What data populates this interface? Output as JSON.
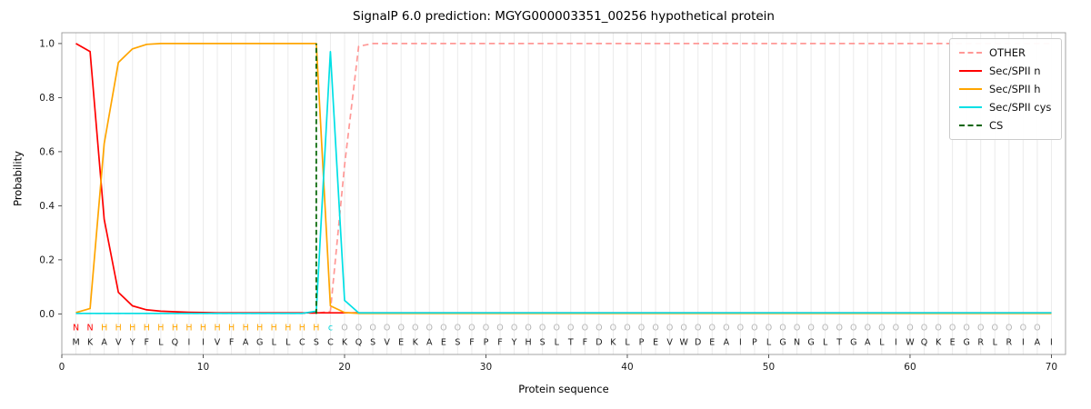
{
  "chart_data": {
    "type": "line",
    "title": "SignalP 6.0 prediction: MGYG000003351_00256 hypothetical protein",
    "xlabel": "Protein sequence",
    "ylabel": "Probability",
    "xlim": [
      0,
      71
    ],
    "ylim": [
      -0.15,
      1.04
    ],
    "xticks": [
      0,
      10,
      20,
      30,
      40,
      50,
      60,
      70
    ],
    "yticks": [
      "0.0",
      "0.2",
      "0.4",
      "0.6",
      "0.8",
      "1.0"
    ],
    "grid": "vertical-gridline-per-residue",
    "legend_position": "upper right",
    "x_positions_start": 1,
    "x_positions_end": 70,
    "series": [
      {
        "name": "OTHER",
        "color": "#ff9896",
        "style": "dashed",
        "values": [
          0.002,
          0.002,
          0.002,
          0.002,
          0.002,
          0.002,
          0.002,
          0.002,
          0.002,
          0.002,
          0.002,
          0.002,
          0.002,
          0.002,
          0.002,
          0.002,
          0.002,
          0.002,
          0.01,
          0.55,
          0.99,
          1.0,
          1.0,
          1.0,
          1.0,
          1.0,
          1.0,
          1.0,
          1.0,
          1.0,
          1.0,
          1.0,
          1.0,
          1.0,
          1.0,
          1.0,
          1.0,
          1.0,
          1.0,
          1.0,
          1.0,
          1.0,
          1.0,
          1.0,
          1.0,
          1.0,
          1.0,
          1.0,
          1.0,
          1.0,
          1.0,
          1.0,
          1.0,
          1.0,
          1.0,
          1.0,
          1.0,
          1.0,
          1.0,
          1.0,
          1.0,
          1.0,
          1.0,
          1.0,
          1.0,
          1.0,
          1.0,
          1.0,
          1.0,
          1.0
        ]
      },
      {
        "name": "Sec/SPII n",
        "color": "#ff0000",
        "style": "solid",
        "values": [
          1.0,
          0.97,
          0.35,
          0.08,
          0.03,
          0.015,
          0.01,
          0.008,
          0.006,
          0.005,
          0.004,
          0.004,
          0.004,
          0.004,
          0.004,
          0.004,
          0.004,
          0.004,
          0.004,
          0.004,
          0.004,
          0.004,
          0.004,
          0.004,
          0.004,
          0.004,
          0.004,
          0.004,
          0.004,
          0.004,
          0.004,
          0.004,
          0.004,
          0.004,
          0.004,
          0.004,
          0.004,
          0.004,
          0.004,
          0.004,
          0.004,
          0.004,
          0.004,
          0.004,
          0.004,
          0.004,
          0.004,
          0.004,
          0.004,
          0.004,
          0.004,
          0.004,
          0.004,
          0.004,
          0.004,
          0.004,
          0.004,
          0.004,
          0.004,
          0.004,
          0.004,
          0.004,
          0.004,
          0.004,
          0.004,
          0.004,
          0.004,
          0.004,
          0.004,
          0.004
        ]
      },
      {
        "name": "Sec/SPII h",
        "color": "#ffa500",
        "style": "solid",
        "values": [
          0.005,
          0.02,
          0.63,
          0.93,
          0.98,
          0.997,
          1.0,
          1.0,
          1.0,
          1.0,
          1.0,
          1.0,
          1.0,
          1.0,
          1.0,
          1.0,
          1.0,
          1.0,
          0.03,
          0.005,
          0.002,
          0.002,
          0.002,
          0.002,
          0.002,
          0.002,
          0.002,
          0.002,
          0.002,
          0.002,
          0.002,
          0.002,
          0.002,
          0.002,
          0.002,
          0.002,
          0.002,
          0.002,
          0.002,
          0.002,
          0.002,
          0.002,
          0.002,
          0.002,
          0.002,
          0.002,
          0.002,
          0.002,
          0.002,
          0.002,
          0.002,
          0.002,
          0.002,
          0.002,
          0.002,
          0.002,
          0.002,
          0.002,
          0.002,
          0.002,
          0.002,
          0.002,
          0.002,
          0.002,
          0.002,
          0.002,
          0.002,
          0.002,
          0.002,
          0.002
        ]
      },
      {
        "name": "Sec/SPII cys",
        "color": "#00e0e5",
        "style": "solid",
        "values": [
          0.002,
          0.002,
          0.002,
          0.002,
          0.002,
          0.002,
          0.002,
          0.002,
          0.002,
          0.002,
          0.002,
          0.002,
          0.002,
          0.002,
          0.002,
          0.002,
          0.002,
          0.01,
          0.97,
          0.05,
          0.004,
          0.004,
          0.004,
          0.004,
          0.004,
          0.004,
          0.004,
          0.004,
          0.004,
          0.004,
          0.004,
          0.004,
          0.004,
          0.004,
          0.004,
          0.004,
          0.004,
          0.004,
          0.004,
          0.004,
          0.004,
          0.004,
          0.004,
          0.004,
          0.004,
          0.004,
          0.004,
          0.004,
          0.004,
          0.004,
          0.004,
          0.004,
          0.004,
          0.004,
          0.004,
          0.004,
          0.004,
          0.004,
          0.004,
          0.004,
          0.004,
          0.004,
          0.004,
          0.004,
          0.004,
          0.004,
          0.004,
          0.004,
          0.004,
          0.004
        ]
      }
    ],
    "cs_line": {
      "label": "CS",
      "x": 18,
      "color": "#006400",
      "style": "dashed"
    },
    "sequence": "MKAVYFLQIIVFAGLLCSCKQSVEKAESFPFYHSLTFDKLPEVWDEAIPLGNGLTGALIWQKEGRLRIAI",
    "region_labels": "NNHHHHHHHHHHHHHHHHcOOOOOOOOOOOOOOOOOOOOOOOOOOOOOOOOOOOOOOOOOOOOOOOOOO",
    "label_colors": {
      "N": "#ff0000",
      "H": "#ffa500",
      "c": "#00d5da",
      "O": "#b4b4b4"
    },
    "sequence_color": "#1a1a1a"
  },
  "legend": {
    "entries": [
      {
        "label": "OTHER",
        "color": "#ff9896",
        "style": "dashed"
      },
      {
        "label": "Sec/SPII n",
        "color": "#ff0000",
        "style": "solid"
      },
      {
        "label": "Sec/SPII h",
        "color": "#ffa500",
        "style": "solid"
      },
      {
        "label": "Sec/SPII cys",
        "color": "#00e0e5",
        "style": "solid"
      },
      {
        "label": "CS",
        "color": "#006400",
        "style": "dashed"
      }
    ]
  }
}
